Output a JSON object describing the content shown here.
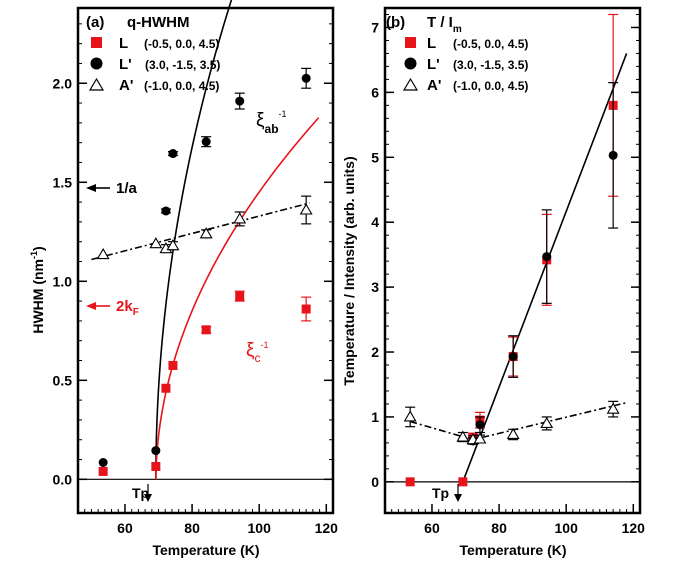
{
  "chart_data": [
    {
      "type": "scatter",
      "panel_label": "(a)",
      "title": "q-HWHM",
      "xlabel": "Temperature (K)",
      "ylabel": "HWHM (nm",
      "ylabel_sup": "-1",
      "ylabel_tail": ")",
      "xlim": [
        46,
        122
      ],
      "ylim": [
        -0.17,
        2.38
      ],
      "xticks": [
        60,
        80,
        100,
        120
      ],
      "yticks": [
        0.0,
        0.5,
        1.0,
        1.5,
        2.0
      ],
      "ytick_labels": [
        "0.0",
        "0.5",
        "1.0",
        "1.5",
        "2.0"
      ],
      "legend_position": "top-left",
      "series": [
        {
          "name": "L",
          "hkl": "(-0.5,  0.0, 4.5)",
          "marker": "square",
          "color": "#e8141b",
          "x": [
            53.5,
            69.2,
            72.2,
            74.3,
            84.2,
            94.2,
            114.0
          ],
          "y": [
            0.04,
            0.065,
            0.46,
            0.575,
            0.755,
            0.925,
            0.86
          ],
          "err": [
            0,
            0,
            0,
            0,
            0.015,
            0.025,
            0.06
          ]
        },
        {
          "name": "L'",
          "hkl": "(3.0, -1.5, 3.5)",
          "marker": "circle",
          "color": "#000000",
          "x": [
            53.5,
            69.2,
            72.2,
            74.3,
            84.2,
            94.2,
            114.0
          ],
          "y": [
            0.085,
            0.145,
            1.355,
            1.645,
            1.705,
            1.91,
            2.025
          ],
          "err": [
            0,
            0,
            0.01,
            0.01,
            0.025,
            0.04,
            0.05
          ]
        },
        {
          "name": "A'",
          "hkl": "(-1.0,  0.0, 4.5)",
          "marker": "triangle-open",
          "color": "#000000",
          "x": [
            53.5,
            69.2,
            72.2,
            74.3,
            84.2,
            94.2,
            114.0
          ],
          "y": [
            1.135,
            1.19,
            1.165,
            1.18,
            1.24,
            1.315,
            1.36
          ],
          "err": [
            0,
            0,
            0.02,
            0.02,
            0.02,
            0.035,
            0.07
          ]
        }
      ],
      "annotations": {
        "arrow_1a": {
          "text": "1/a",
          "y": 1.49,
          "color": "#000000"
        },
        "arrow_2kf": {
          "text": "2k",
          "sub": "F",
          "y": 0.885,
          "color": "#e8141b"
        },
        "xi_ab": {
          "text": "ξ",
          "sub": "ab",
          "sup": "-1"
        },
        "xi_c": {
          "text": "ξ",
          "sub": "c",
          "sup": "-1"
        },
        "tp": {
          "text": "Tp",
          "x": 69.2
        }
      },
      "fit_lines": {
        "xi_ab_curve": {
          "color": "#000000",
          "style": "solid",
          "onset_x": 69.2,
          "amplitude": 0.51,
          "offset": 0.0
        },
        "xi_c_curve": {
          "color": "#e8141b",
          "style": "solid",
          "onset_x": 69.2,
          "amplitude": 0.265,
          "offset": -0.02
        },
        "A_prime_line": {
          "color": "#000000",
          "style": "dash-dot",
          "x": [
            50,
            115
          ],
          "y": [
            1.11,
            1.395
          ]
        }
      }
    },
    {
      "type": "scatter",
      "panel_label": "(b)",
      "title": "T / I",
      "title_sub": "m",
      "xlabel": "Temperature (K)",
      "ylabel": "Temperature / Intensity (arb. units)",
      "xlim": [
        46,
        122
      ],
      "ylim": [
        -0.48,
        7.3
      ],
      "xticks": [
        60,
        80,
        100,
        120
      ],
      "yticks": [
        0,
        1,
        2,
        3,
        4,
        5,
        6,
        7
      ],
      "ytick_labels": [
        "0",
        "1",
        "2",
        "3",
        "4",
        "5",
        "6",
        "7"
      ],
      "legend_position": "top-left",
      "series": [
        {
          "name": "L",
          "hkl": "(-0.5,  0.0, 4.5)",
          "marker": "square",
          "color": "#e8141b",
          "x": [
            53.5,
            69.2,
            72.2,
            74.3,
            84.2,
            94.2,
            114.0
          ],
          "y": [
            0.0,
            0.0,
            0.68,
            0.95,
            1.93,
            3.42,
            5.8
          ],
          "err": [
            0,
            0,
            0.07,
            0.12,
            0.3,
            0.7,
            1.4
          ]
        },
        {
          "name": "L'",
          "hkl": "(3.0, -1.5, 3.5)",
          "marker": "circle",
          "color": "#000000",
          "x": [
            72.2,
            74.3,
            84.2,
            94.2,
            114.0
          ],
          "y": [
            0.63,
            0.88,
            1.93,
            3.47,
            5.03
          ],
          "err": [
            0.05,
            0.12,
            0.32,
            0.72,
            1.12
          ]
        },
        {
          "name": "A'",
          "hkl": "(-1.0,  0.0, 4.5)",
          "marker": "triangle-open",
          "color": "#000000",
          "x": [
            53.5,
            69.2,
            72.2,
            74.3,
            84.2,
            94.2,
            114.0
          ],
          "y": [
            1.0,
            0.69,
            0.65,
            0.66,
            0.73,
            0.9,
            1.12
          ],
          "err": [
            0.15,
            0.07,
            0.06,
            0.06,
            0.08,
            0.1,
            0.12
          ]
        }
      ],
      "annotations": {
        "tp": {
          "text": "Tp",
          "x": 69.2
        }
      },
      "fit_lines": {
        "linear_fit": {
          "color": "#000000",
          "style": "solid",
          "x": [
            69.2,
            118
          ],
          "y": [
            0.0,
            6.6
          ]
        },
        "A_prime_line": {
          "color": "#000000",
          "style": "dash-dot",
          "x": [
            53.5,
            72.2,
            118
          ],
          "y": [
            0.93,
            0.65,
            1.22
          ]
        }
      }
    }
  ]
}
